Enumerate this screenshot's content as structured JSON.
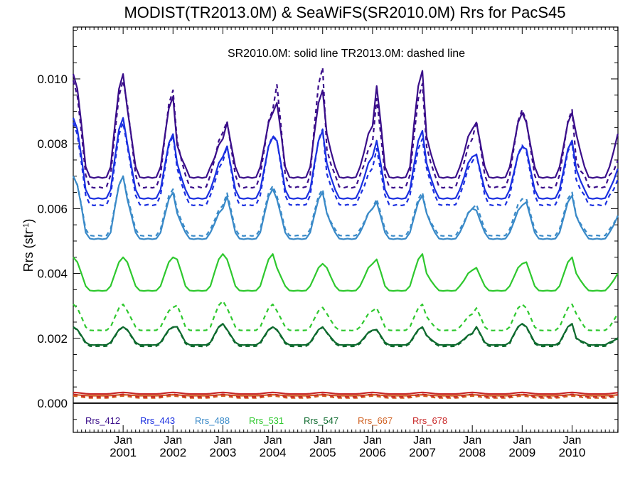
{
  "chart_data": {
    "type": "line",
    "title": "MODIST(TR2013.0M) & SeaWiFS(SR2010.0M)  Rrs for PacS45",
    "subtitle": "SR2010.0M: solid line   TR2013.0M: dashed line",
    "ylabel_main": "Rrs (str",
    "ylabel_sup": "-1",
    "ylabel_end": ")",
    "xlabel": "",
    "xlim": [
      2000.0,
      2010.92
    ],
    "ylim": [
      -0.0009,
      0.0116
    ],
    "yticks": [
      0.0,
      0.002,
      0.004,
      0.006,
      0.008,
      0.01
    ],
    "ytick_labels": [
      "0.000",
      "0.002",
      "0.004",
      "0.006",
      "0.008",
      "0.010"
    ],
    "xticks": [
      2001,
      2002,
      2003,
      2004,
      2005,
      2006,
      2007,
      2008,
      2009,
      2010
    ],
    "xtick_month_label": "Jan",
    "xtick_year_labels": [
      "2001",
      "2002",
      "2003",
      "2004",
      "2005",
      "2006",
      "2007",
      "2008",
      "2009",
      "2010"
    ],
    "zero_line": 0.0,
    "legend_placement": "bottom-left",
    "time_step": 0.0833333,
    "series": [
      {
        "name": "Rrs_412",
        "color": "#3a0e8a",
        "solid": {
          "start": 2000.0,
          "amp": 0.00125,
          "base": 0.0076,
          "var": [
            0.0013,
            0.0006,
            -0.0007,
            0.0001,
            0.0008,
            -0.0003,
            0.0014,
            -0.0004,
            0.0001,
            0.0001,
            -0.0003
          ]
        },
        "dashed": {
          "start": 2000.0,
          "amp": 0.00145,
          "base": 0.0074,
          "var": [
            0.0011,
            0.0008,
            -0.0005,
            0.0002,
            0.0015,
            -0.0008,
            0.001,
            -0.0007,
            0.0002,
            0.0002,
            -0.0012
          ]
        }
      },
      {
        "name": "Rrs_443",
        "color": "#1a2fe0",
        "solid": {
          "start": 2000.0,
          "amp": 0.00105,
          "base": 0.00685,
          "var": [
            0.0009,
            0.0004,
            -0.0003,
            0.0003,
            0.0005,
            -0.0003,
            0.0005,
            -0.0003,
            0.0,
            0.0002,
            -0.0005
          ]
        },
        "dashed": {
          "start": 2000.0,
          "amp": 0.00115,
          "base": 0.0067,
          "var": [
            0.0008,
            0.0004,
            -0.0004,
            0.0004,
            0.0006,
            -0.0006,
            0.0003,
            -0.0004,
            0.0001,
            0.0002,
            -0.0008
          ]
        }
      },
      {
        "name": "Rrs_488",
        "color": "#3a8ac8",
        "solid": {
          "start": 2000.0,
          "amp": 0.00075,
          "base": 0.00545,
          "var": [
            0.0008,
            0.0003,
            -0.0002,
            0.0004,
            0.0003,
            -0.0002,
            0.0002,
            -0.0002,
            -0.0001,
            0.0002,
            -0.0003
          ]
        },
        "dashed": {
          "start": 2000.0,
          "amp": 0.00075,
          "base": 0.00555,
          "var": [
            0.0007,
            0.0003,
            -0.0002,
            0.0004,
            0.0003,
            -0.0003,
            0.0002,
            -0.0003,
            0.0,
            0.0002,
            -0.0004
          ]
        }
      },
      {
        "name": "Rrs_531",
        "color": "#2ec82e",
        "solid": {
          "start": 2000.0,
          "amp": 0.00055,
          "base": 0.00375,
          "var": [
            0.0002,
            0.0002,
            0.0003,
            0.0003,
            0.0,
            0.0,
            0.0003,
            -0.0002,
            0.0,
            0.0002,
            -0.0002
          ]
        },
        "dashed": {
          "start": 2000.0,
          "amp": 0.0004,
          "base": 0.00245,
          "var": [
            0.0002,
            0.0001,
            0.0003,
            0.0002,
            0.0001,
            0.0,
            0.0002,
            -0.0001,
            0.0002,
            0.0002,
            0.0
          ]
        }
      },
      {
        "name": "Rrs_547",
        "color": "#0e6a2e",
        "solid": {
          "start": 2000.0,
          "amp": 0.0003,
          "base": 0.00195,
          "var": [
            0.0001,
            0.0001,
            0.0002,
            0.0001,
            0.0001,
            0.0,
            0.0001,
            -0.0001,
            0.0002,
            0.0002,
            -0.0002
          ]
        },
        "dashed": {
          "start": 2000.0,
          "amp": 0.00032,
          "base": 0.00192,
          "var": [
            0.0001,
            0.0001,
            0.0002,
            0.0001,
            0.0001,
            0.0,
            0.0001,
            -0.0001,
            0.0002,
            0.0002,
            -0.0002
          ]
        }
      },
      {
        "name": "Rrs_667",
        "color": "#d06020",
        "solid": {
          "start": 2000.0,
          "amp": 2e-05,
          "base": 0.00024,
          "var": [
            0,
            0,
            0,
            0,
            0,
            0,
            0,
            0,
            0,
            0,
            0
          ]
        },
        "dashed": {
          "start": 2000.0,
          "amp": 4e-05,
          "base": 0.00018,
          "var": [
            0,
            0,
            0,
            0,
            0,
            0,
            0,
            0,
            0,
            0,
            0
          ]
        }
      },
      {
        "name": "Rrs_678",
        "color": "#c82828",
        "solid": {
          "start": 2000.0,
          "amp": 3e-05,
          "base": 0.0003,
          "var": [
            0,
            0,
            0,
            0,
            0,
            0,
            0,
            0,
            0,
            0,
            0
          ]
        },
        "dashed": {
          "start": 2000.0,
          "amp": 5e-05,
          "base": 0.00022,
          "var": [
            0,
            0,
            0,
            0,
            0,
            0,
            0,
            0,
            0,
            0,
            0
          ]
        }
      }
    ]
  }
}
